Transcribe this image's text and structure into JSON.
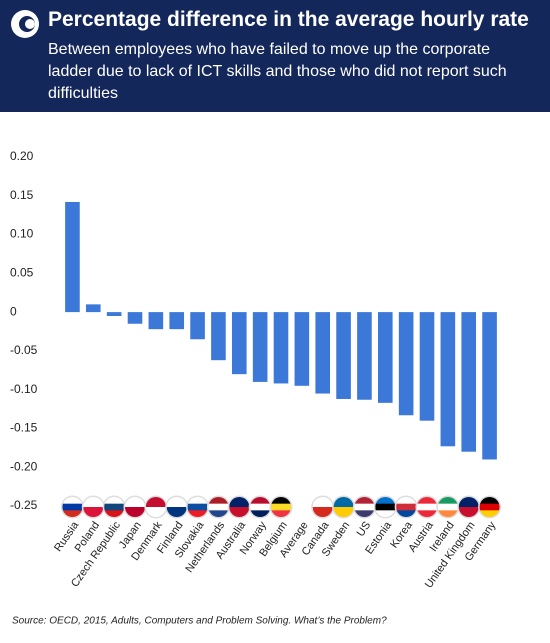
{
  "chart_data": {
    "type": "bar",
    "title": "Percentage difference in the average hourly rate",
    "subtitle": "Between employees who have failed to move up the corporate ladder due to lack of ICT skills and those who did not report such difficulties",
    "source": "Source: OECD, 2015, Adults, Computers and Problem Solving. What’s the Problem?",
    "categories": [
      "Russia",
      "Poland",
      "Czech Republic",
      "Japan",
      "Denmark",
      "Finland",
      "Slovakia",
      "Netherlands",
      "Australia",
      "Norway",
      "Belgium",
      "Average",
      "Canada",
      "Sweden",
      "US",
      "Estonia",
      "Korea",
      "Austria",
      "Ireland",
      "United Kingdom",
      "Germany"
    ],
    "values": [
      0.142,
      0.01,
      -0.005,
      -0.015,
      -0.022,
      -0.022,
      -0.035,
      -0.062,
      -0.08,
      -0.09,
      -0.092,
      -0.095,
      -0.105,
      -0.112,
      -0.113,
      -0.117,
      -0.133,
      -0.14,
      -0.173,
      -0.18,
      -0.19
    ],
    "color": "#3b78d8",
    "ylim": [
      -0.25,
      0.2
    ],
    "yticks": [
      {
        "value": 0.2,
        "label": "0.20"
      },
      0.15,
      {
        "value": 0.1,
        "label": "0.10"
      },
      0.05,
      0,
      -0.05,
      {
        "value": -0.1,
        "label": "-0.10"
      },
      -0.15,
      {
        "value": -0.2,
        "label": "-0.20"
      },
      -0.25
    ],
    "grid": false
  }
}
